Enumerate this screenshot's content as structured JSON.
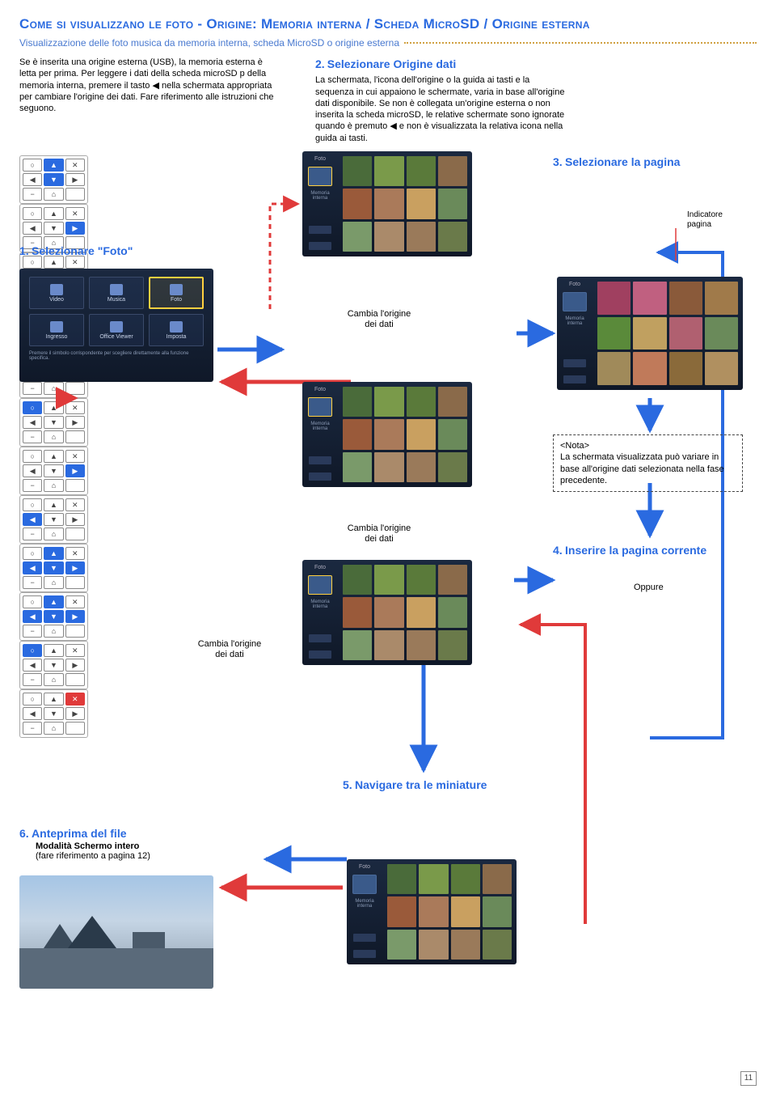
{
  "colors": {
    "title_blue": "#2a6ae0",
    "subtitle_blue": "#4a7ad0",
    "dots": "#d0a040",
    "step_num": "#2a6ae0",
    "arrow_blue": "#2a6ae0",
    "arrow_red": "#e03a3a",
    "dashed_red": "#e03a3a",
    "screen_dark": "#14203a"
  },
  "title": "Come si visualizzano le foto - Origine: Memoria interna / Scheda MicroSD / Origine esterna",
  "subtitle": "Visualizzazione delle foto musica da memoria interna, scheda MicroSD o origine esterna",
  "intro_left": "Se è inserita una origine esterna (USB), la memoria esterna è letta per prima. Per leggere i dati della scheda microSD p della memoria interna, premere il tasto ◀ nella schermata appropriata per cambiare l'origine dei dati. Fare riferimento alle istruzioni che seguono.",
  "step2": {
    "num": "2.",
    "title": "Selezionare Origine dati",
    "body": "La schermata, l'icona dell'origine o la guida ai tasti e la sequenza in cui appaiono le schermate, varia in base all'origine dati disponibile. Se non è collegata un'origine esterna o non inserita la scheda microSD, le relative schermate sono ignorate quando è premuto ◀ e non è visualizzata la relativa icona nella guida ai tasti."
  },
  "step1": {
    "num": "1.",
    "title": "Selezionare \"Foto\""
  },
  "step3": {
    "num": "3.",
    "title": "Selezionare la pagina"
  },
  "step4": {
    "num": "4.",
    "title": "Inserire la pagina corrente"
  },
  "step5": {
    "num": "5.",
    "title": "Navigare tra le miniature"
  },
  "step6": {
    "num": "6.",
    "title": "Anteprima del file",
    "sub1": "Modalità Schermo intero",
    "sub2": "(fare riferimento a pagina 12)"
  },
  "change_origin": "Cambia l'origine\ndei dati",
  "indicator": "Indicatore\npagina",
  "oppure": "Oppure",
  "note_title": "<Nota>",
  "note_body": "La schermata visualizzata può variare in base all'origine dati selezionata nella fase precedente.",
  "page_number": "11",
  "menu_screen": {
    "items": [
      "Video",
      "Musica",
      "Foto",
      "Ingresso",
      "Office Viewer",
      "Imposta"
    ],
    "footer": "Premere il simbolo corrispondente per scegliere direttamente alla funzione specifica.",
    "highlight_index": 2
  },
  "thumb_colors_a": [
    "#4a6b3a",
    "#7a9a4a",
    "#5a7a3a",
    "#8a6a4a",
    "#9a5a3a",
    "#aa7a5a",
    "#c9a060",
    "#6a8a5a",
    "#7a9a6a",
    "#aa8a6a",
    "#9a7a5a",
    "#6a7a4a"
  ],
  "thumb_colors_b": [
    "#a04060",
    "#c06080",
    "#8a5a3a",
    "#a07a4a",
    "#5a8a3a",
    "#c0a060",
    "#b06070",
    "#6a8a5a",
    "#a08a5a",
    "#c07a5a",
    "#8a6a3a",
    "#b09060"
  ],
  "remote_symbols": {
    "circle": "○",
    "up": "▲",
    "x": "✕",
    "left": "◀",
    "down": "▼",
    "right": "▶",
    "minus": "−",
    "home": "⌂",
    "arrow": "↗"
  }
}
